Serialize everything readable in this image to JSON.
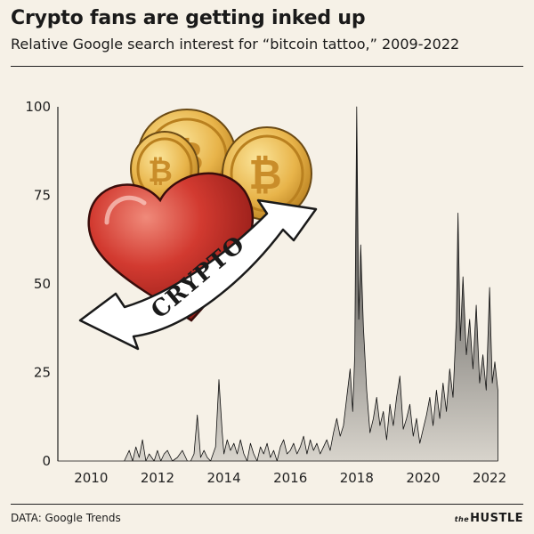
{
  "header": {
    "title": "Crypto fans are getting inked up",
    "subtitle": "Relative Google search interest for “bitcoin tattoo,” 2009-2022"
  },
  "footer": {
    "source": "DATA: Google Trends",
    "brand_prefix": "the",
    "brand_name": "HUSTLE"
  },
  "illustration": {
    "banner_text": "CRYPTO",
    "coin_symbol": "₿",
    "colors": {
      "coin": "#e8b44a",
      "heart": "#c9302a"
    }
  },
  "chart_data": {
    "type": "area",
    "title": "Crypto fans are getting inked up",
    "subtitle": "Relative Google search interest for “bitcoin tattoo,” 2009-2022",
    "xlabel": "",
    "ylabel": "",
    "xlim": [
      2009,
      2022.4
    ],
    "ylim": [
      0,
      100
    ],
    "x_ticks": [
      2010,
      2012,
      2014,
      2016,
      2018,
      2020,
      2022
    ],
    "y_ticks": [
      0,
      25,
      50,
      75,
      100
    ],
    "grid": false,
    "fill_gradient": [
      "#d8d4cc",
      "#1a1a1a"
    ],
    "series": [
      {
        "x": [
          2009.0,
          2011.0,
          2011.15,
          2011.25,
          2011.35,
          2011.45,
          2011.55,
          2011.65,
          2011.75,
          2011.9,
          2012.0,
          2012.1,
          2012.2,
          2012.3,
          2012.45,
          2012.6,
          2012.75,
          2012.9,
          2013.0,
          2013.1,
          2013.2,
          2013.3,
          2013.4,
          2013.5,
          2013.6,
          2013.75,
          2013.85,
          2013.95,
          2014.0,
          2014.1,
          2014.2,
          2014.3,
          2014.4,
          2014.5,
          2014.6,
          2014.7,
          2014.8,
          2014.9,
          2015.0,
          2015.1,
          2015.2,
          2015.3,
          2015.4,
          2015.5,
          2015.6,
          2015.7,
          2015.8,
          2015.9,
          2016.0,
          2016.1,
          2016.2,
          2016.3,
          2016.4,
          2016.5,
          2016.6,
          2016.7,
          2016.8,
          2016.9,
          2017.0,
          2017.1,
          2017.2,
          2017.3,
          2017.4,
          2017.5,
          2017.6,
          2017.7,
          2017.8,
          2017.88,
          2017.94,
          2018.0,
          2018.06,
          2018.12,
          2018.2,
          2018.3,
          2018.4,
          2018.5,
          2018.6,
          2018.7,
          2018.8,
          2018.9,
          2019.0,
          2019.1,
          2019.2,
          2019.3,
          2019.4,
          2019.5,
          2019.6,
          2019.7,
          2019.8,
          2019.9,
          2020.0,
          2020.1,
          2020.2,
          2020.3,
          2020.4,
          2020.5,
          2020.6,
          2020.7,
          2020.8,
          2020.9,
          2021.0,
          2021.05,
          2021.12,
          2021.2,
          2021.3,
          2021.4,
          2021.5,
          2021.6,
          2021.7,
          2021.8,
          2021.9,
          2022.0,
          2022.08,
          2022.16,
          2022.25
        ],
        "y": [
          0,
          0,
          3,
          0,
          4,
          1,
          6,
          0,
          2,
          0,
          3,
          0,
          2,
          3,
          0,
          1,
          3,
          0,
          0,
          2,
          13,
          1,
          3,
          1,
          0,
          4,
          23,
          8,
          2,
          6,
          3,
          5,
          2,
          6,
          2,
          0,
          5,
          2,
          0,
          4,
          2,
          5,
          1,
          3,
          0,
          4,
          6,
          2,
          3,
          5,
          2,
          4,
          7,
          2,
          6,
          3,
          5,
          2,
          4,
          6,
          3,
          8,
          12,
          7,
          10,
          18,
          26,
          14,
          30,
          100,
          40,
          61,
          38,
          20,
          8,
          12,
          18,
          10,
          14,
          6,
          16,
          10,
          18,
          24,
          9,
          12,
          16,
          7,
          12,
          5,
          9,
          13,
          18,
          10,
          20,
          12,
          22,
          14,
          26,
          18,
          40,
          70,
          34,
          52,
          30,
          40,
          26,
          44,
          22,
          30,
          20,
          49,
          22,
          28,
          20
        ],
        "name": ""
      }
    ]
  }
}
